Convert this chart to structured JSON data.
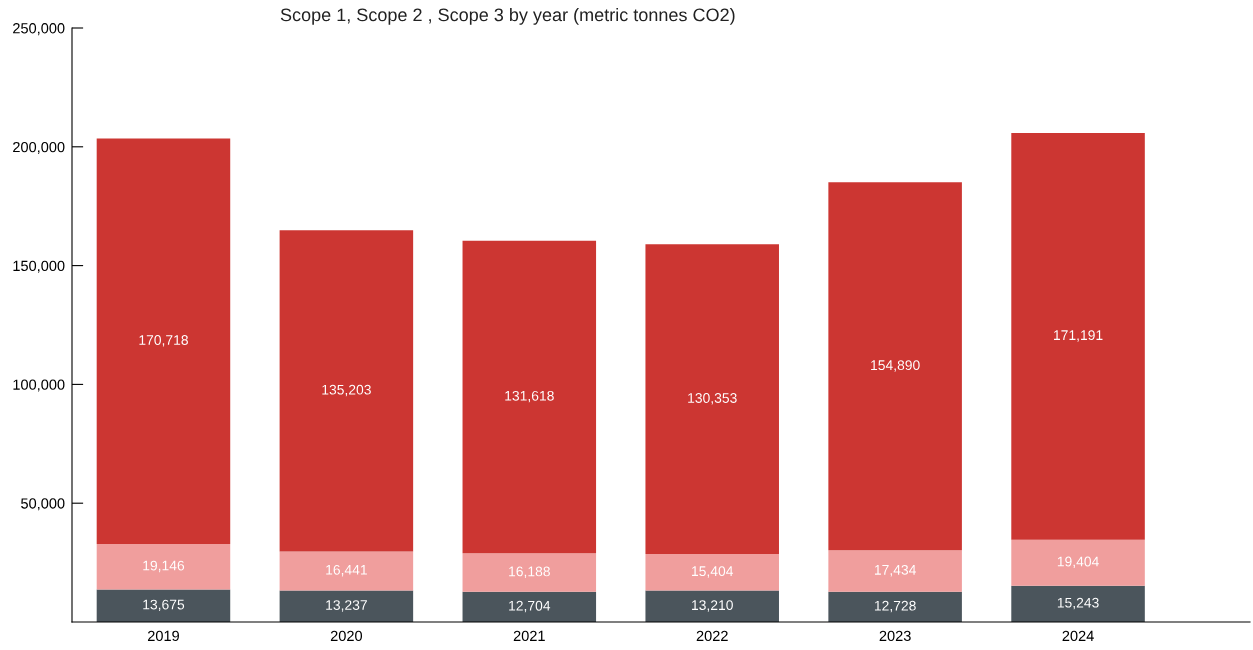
{
  "chart_data": {
    "type": "bar",
    "title": "Scope 1, Scope 2 , Scope 3 by year (metric tonnes CO2)",
    "categories": [
      "2019",
      "2020",
      "2021",
      "2022",
      "2023",
      "2024"
    ],
    "stacked": true,
    "grid": false,
    "legend": false,
    "series": [
      {
        "color": "#4b555c",
        "values": [
          13675,
          13237,
          12704,
          13210,
          12728,
          15243
        ],
        "value_labels": [
          "13,675",
          "13,237",
          "12,704",
          "13,210",
          "12,728",
          "15,243"
        ]
      },
      {
        "color": "#f09e9d",
        "values": [
          19146,
          16441,
          16188,
          15404,
          17434,
          19404
        ],
        "value_labels": [
          "19,146",
          "16,441",
          "16,188",
          "15,404",
          "17,434",
          "19,404"
        ]
      },
      {
        "color": "#cc3632",
        "values": [
          170718,
          135203,
          131618,
          130353,
          154890,
          171191
        ],
        "value_labels": [
          "170,718",
          "135,203",
          "131,618",
          "130,353",
          "154,890",
          "171,191"
        ]
      }
    ],
    "ylim": [
      0,
      250000
    ],
    "yticks": [
      {
        "value": 50000,
        "label": "50,000"
      },
      {
        "value": 100000,
        "label": "100,000"
      },
      {
        "value": 150000,
        "label": "150,000"
      },
      {
        "value": 200000,
        "label": "200,000"
      },
      {
        "value": 250000,
        "label": "250,000"
      }
    ]
  }
}
